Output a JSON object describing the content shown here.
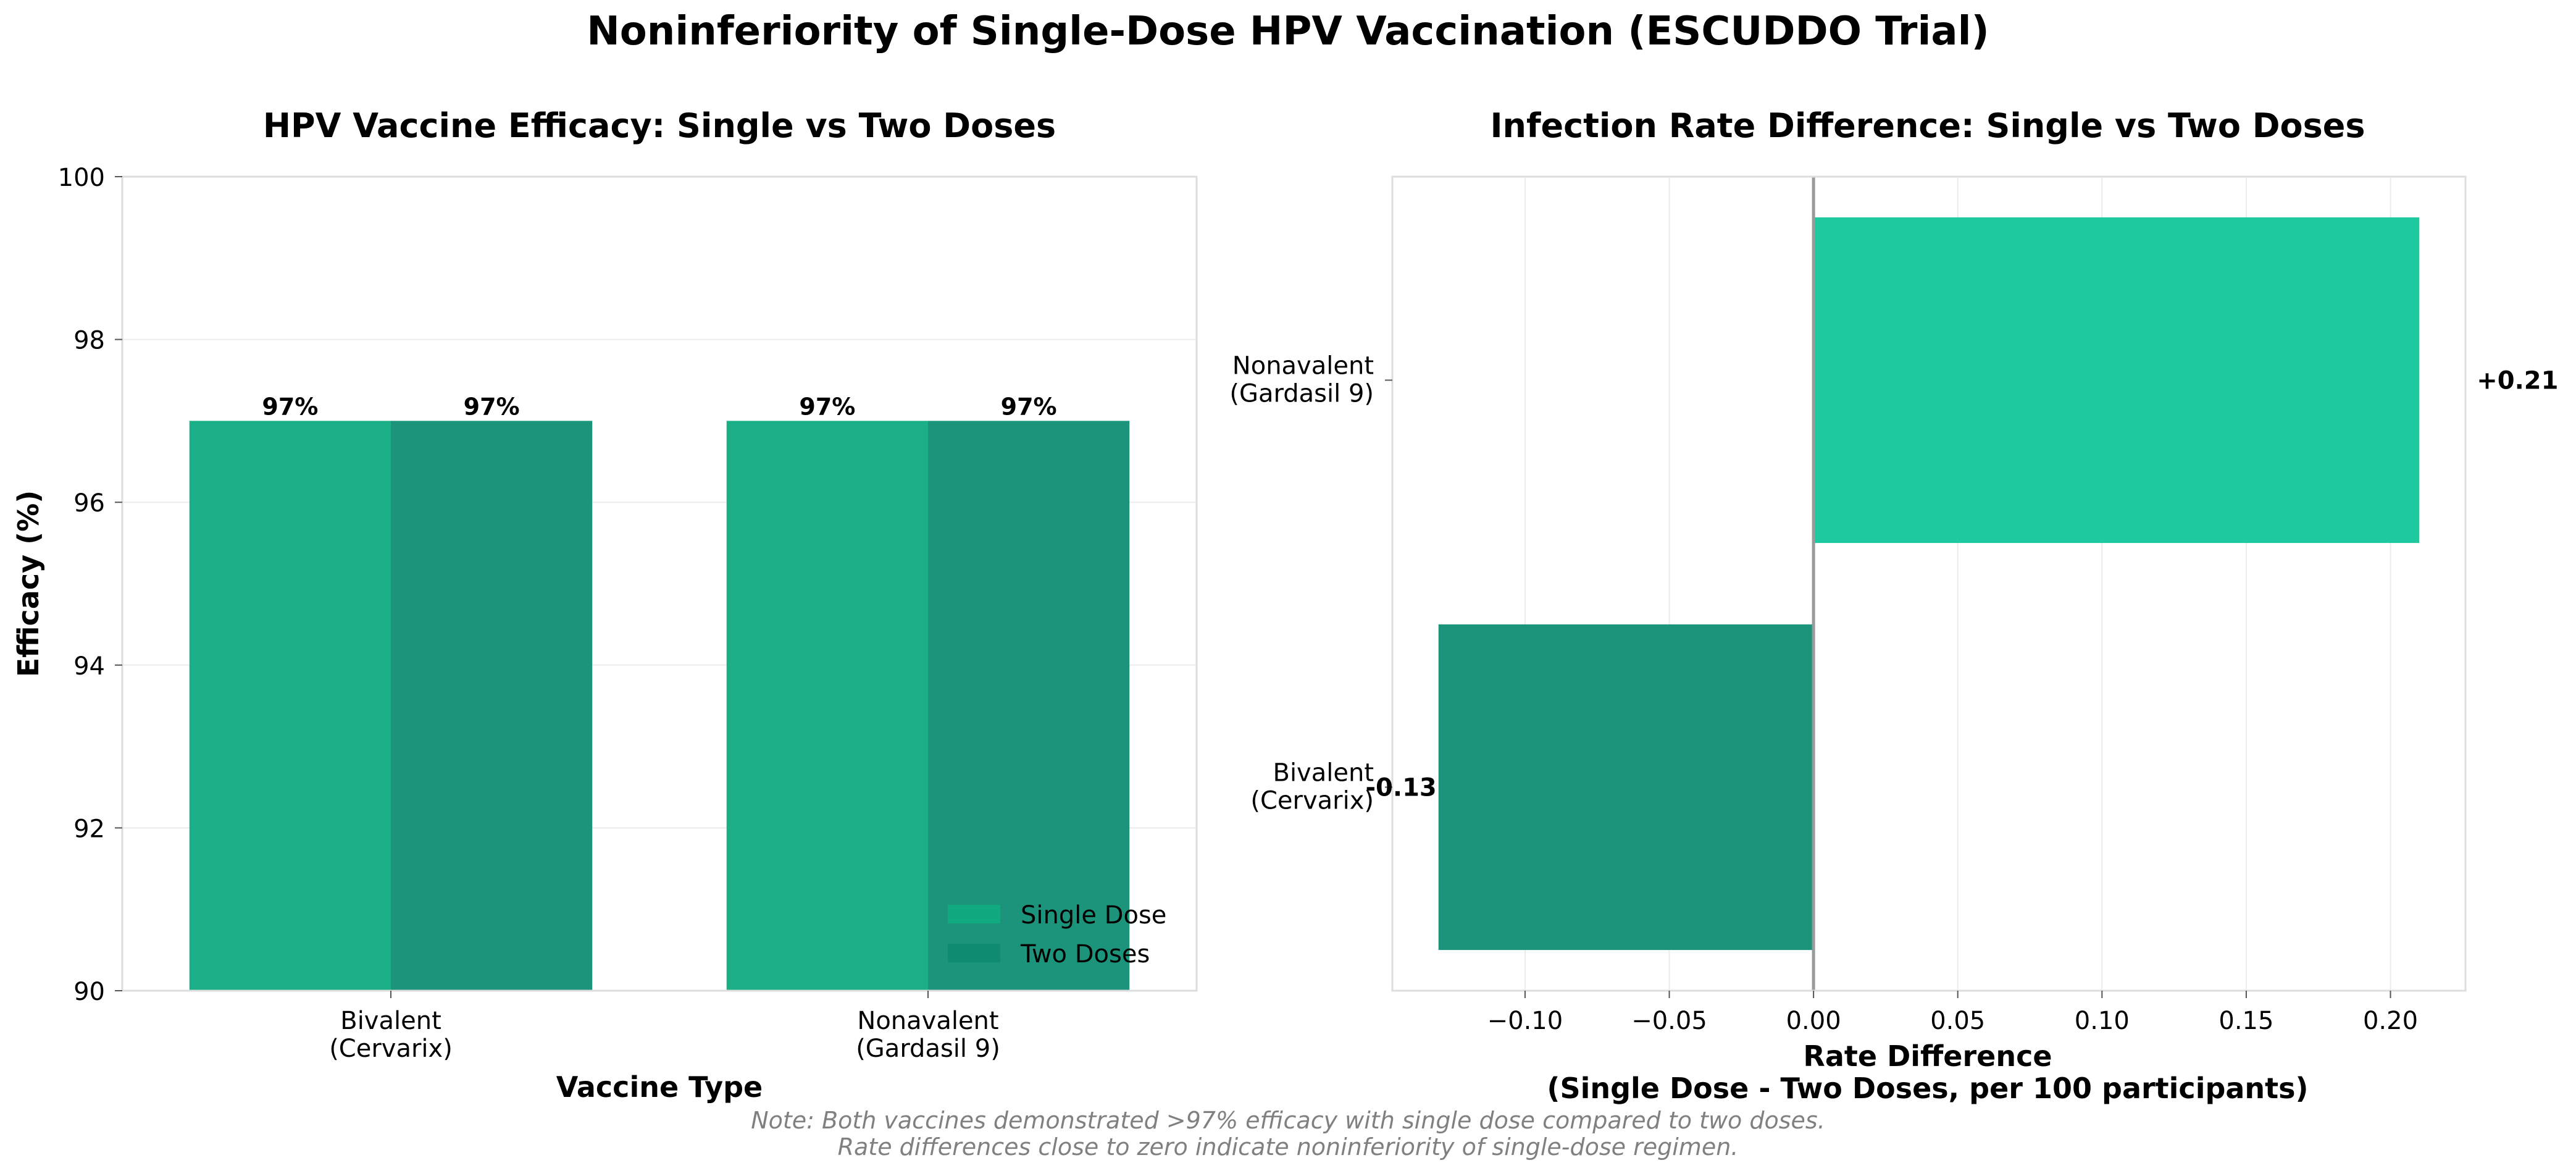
{
  "figure": {
    "title": "Noninferiority of Single-Dose HPV Vaccination (ESCUDDO Trial)",
    "note_line1": "Note: Both vaccines demonstrated >97% efficacy with single dose compared to two doses.",
    "note_line2": "Rate differences close to zero indicate noninferiority of single-dose regimen."
  },
  "colors": {
    "single_dose": "#1aaf87",
    "two_doses": "#1b947b",
    "legend_single": "#0faa7e",
    "legend_two": "#0f8c6f",
    "positive_bar": "#1ec99f",
    "negative_bar": "#1b947b",
    "zero_line": "#999999",
    "grid": "#ebebeb",
    "frame": "#dddddd",
    "note_text": "#808080"
  },
  "chart_data": [
    {
      "type": "bar",
      "title": "HPV Vaccine Efficacy: Single vs Two Doses",
      "xlabel": "Vaccine Type",
      "ylabel": "Efficacy (%)",
      "categories": [
        {
          "line1": "Bivalent",
          "line2": "(Cervarix)"
        },
        {
          "line1": "Nonavalent",
          "line2": "(Gardasil 9)"
        }
      ],
      "series": [
        {
          "name": "Single Dose",
          "values": [
            97,
            97
          ],
          "labels": [
            "97%",
            "97%"
          ]
        },
        {
          "name": "Two Doses",
          "values": [
            97,
            97
          ],
          "labels": [
            "97%",
            "97%"
          ]
        }
      ],
      "ylim": [
        90,
        100
      ],
      "yticks": [
        90,
        92,
        94,
        96,
        98,
        100
      ],
      "legend_position": "lower-right",
      "grid": true
    },
    {
      "type": "bar",
      "orientation": "horizontal",
      "title": "Infection Rate Difference: Single vs Two Doses",
      "xlabel_line1": "Rate Difference",
      "xlabel_line2": "(Single Dose - Two Doses, per 100 participants)",
      "categories": [
        {
          "line1": "Bivalent",
          "line2": "(Cervarix)"
        },
        {
          "line1": "Nonavalent",
          "line2": "(Gardasil 9)"
        }
      ],
      "values": [
        -0.13,
        0.21
      ],
      "labels": [
        "-0.13",
        "+0.21"
      ],
      "xlim": [
        -0.146,
        0.226
      ],
      "xticks": [
        {
          "value": -0.1,
          "label": "−0.10"
        },
        {
          "value": -0.05,
          "label": "−0.05"
        },
        {
          "value": 0.0,
          "label": "0.00"
        },
        {
          "value": 0.05,
          "label": "0.05"
        },
        {
          "value": 0.1,
          "label": "0.10"
        },
        {
          "value": 0.15,
          "label": "0.15"
        },
        {
          "value": 0.2,
          "label": "0.20"
        }
      ],
      "grid": true
    }
  ]
}
